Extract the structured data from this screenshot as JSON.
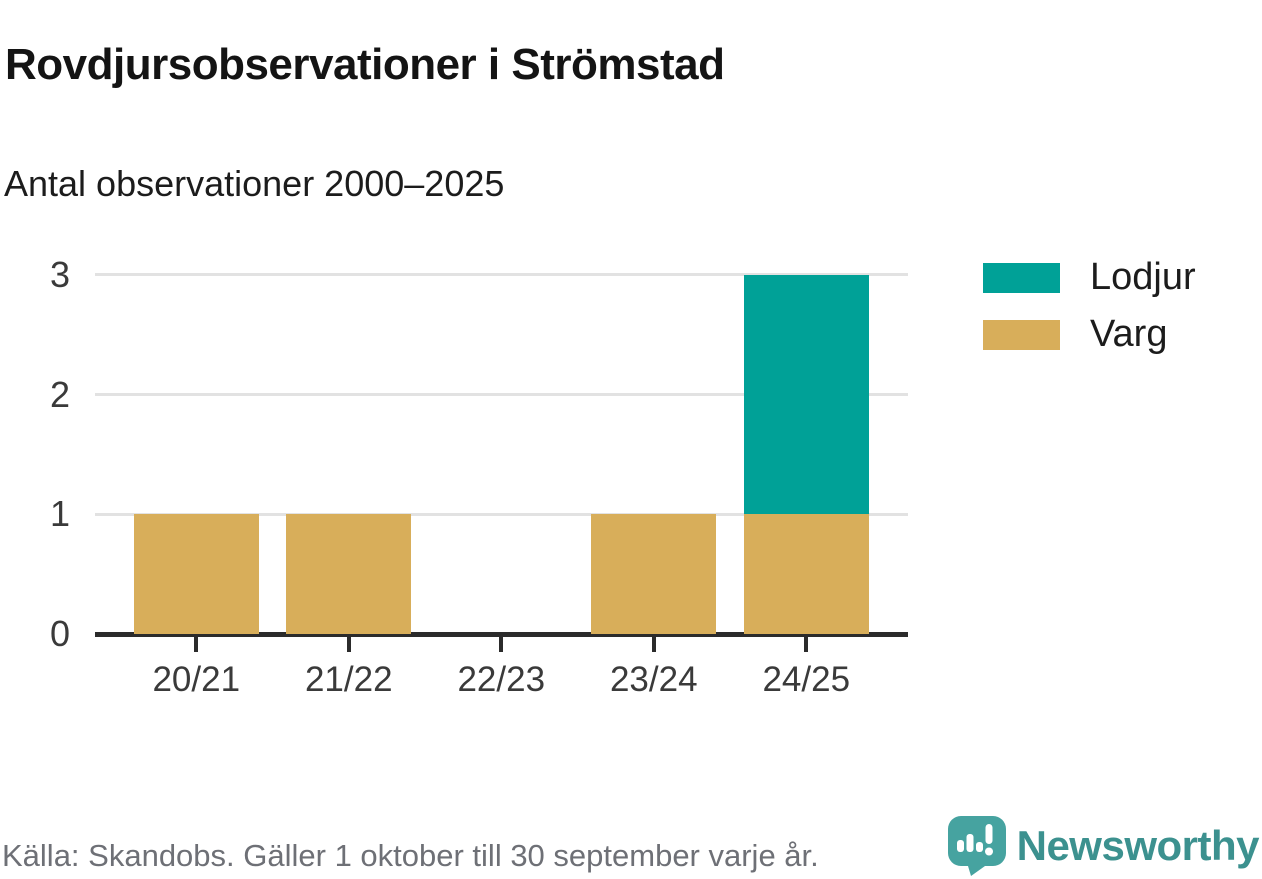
{
  "header": {
    "title": "Rovdjursobservationer i Strömstad",
    "subtitle": "Antal observationer 2000–2025"
  },
  "chart_data": {
    "type": "bar",
    "stacked": true,
    "title": "Rovdjursobservationer i Strömstad",
    "subtitle": "Antal observationer 2000–2025",
    "categories": [
      "20/21",
      "21/22",
      "22/23",
      "23/24",
      "24/25"
    ],
    "series": [
      {
        "name": "Lodjur",
        "color": "#00A197",
        "values": [
          0,
          0,
          0,
          0,
          2
        ]
      },
      {
        "name": "Varg",
        "color": "#D8AE5A",
        "values": [
          1,
          1,
          0,
          1,
          1
        ]
      }
    ],
    "stack_order_bottom_to_top": [
      "Varg",
      "Lodjur"
    ],
    "totals": [
      1,
      1,
      0,
      1,
      3
    ],
    "xlabel": "",
    "ylabel": "",
    "ylim": [
      0,
      3
    ],
    "yticks": [
      0,
      1,
      2,
      3
    ],
    "grid": "horizontal",
    "legend_position": "right"
  },
  "styles": {
    "grid_color": "#E2E2E2",
    "axis_color": "#2B2B2B",
    "tick_label_color": "#3A3A3A"
  },
  "footer": {
    "source": "Källa: Skandobs. Gäller 1 oktober till 30 september varje år.",
    "brand": "Newsworthy",
    "brand_color": "#3C918F",
    "brand_icon": "newsworthy-speech-bubble-chart-icon",
    "brand_icon_color": "#46A3A0"
  }
}
